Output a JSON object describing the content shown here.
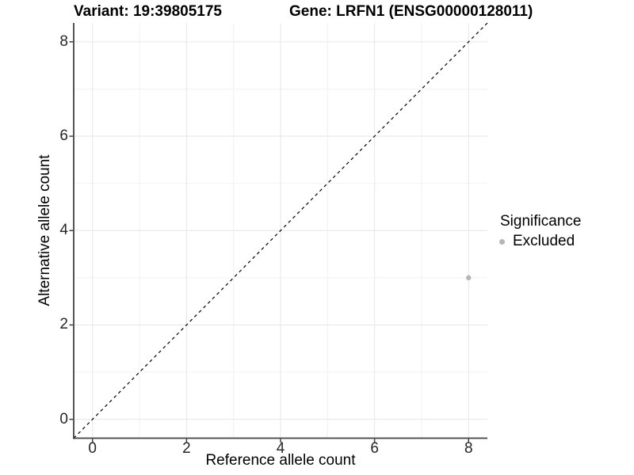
{
  "figure": {
    "title_left": "Variant: 19:39805175",
    "title_right": "Gene: LRFN1 (ENSG00000128011)"
  },
  "chart_data": {
    "type": "scatter",
    "title": "Variant: 19:39805175 — Gene: LRFN1 (ENSG00000128011)",
    "xlabel": "Reference allele count",
    "ylabel": "Alternative allele count",
    "xlim": [
      -0.4,
      8.4
    ],
    "ylim": [
      -0.4,
      8.4
    ],
    "x_ticks": [
      0,
      2,
      4,
      6,
      8
    ],
    "y_ticks": [
      0,
      2,
      4,
      6,
      8
    ],
    "x_minor_ticks": [
      1,
      3,
      5,
      7
    ],
    "y_minor_ticks": [
      1,
      3,
      5,
      7
    ],
    "grid": true,
    "reference_line": {
      "type": "abline",
      "slope": 1,
      "intercept": 0,
      "style": "dashed",
      "color": "#000000"
    },
    "legend": {
      "title": "Significance",
      "position": "right",
      "items": [
        {
          "label": "Excluded",
          "color": "#b5b5b5"
        }
      ]
    },
    "series": [
      {
        "name": "Excluded",
        "color": "#b5b5b5",
        "points": [
          {
            "x": 8,
            "y": 3
          }
        ]
      }
    ]
  },
  "colors": {
    "background": "#ffffff",
    "axis_line": "#404040",
    "grid_major": "#e6e6e6",
    "grid_minor": "#f2f2f2",
    "tick_label": "#262626",
    "point": "#b5b5b5"
  }
}
